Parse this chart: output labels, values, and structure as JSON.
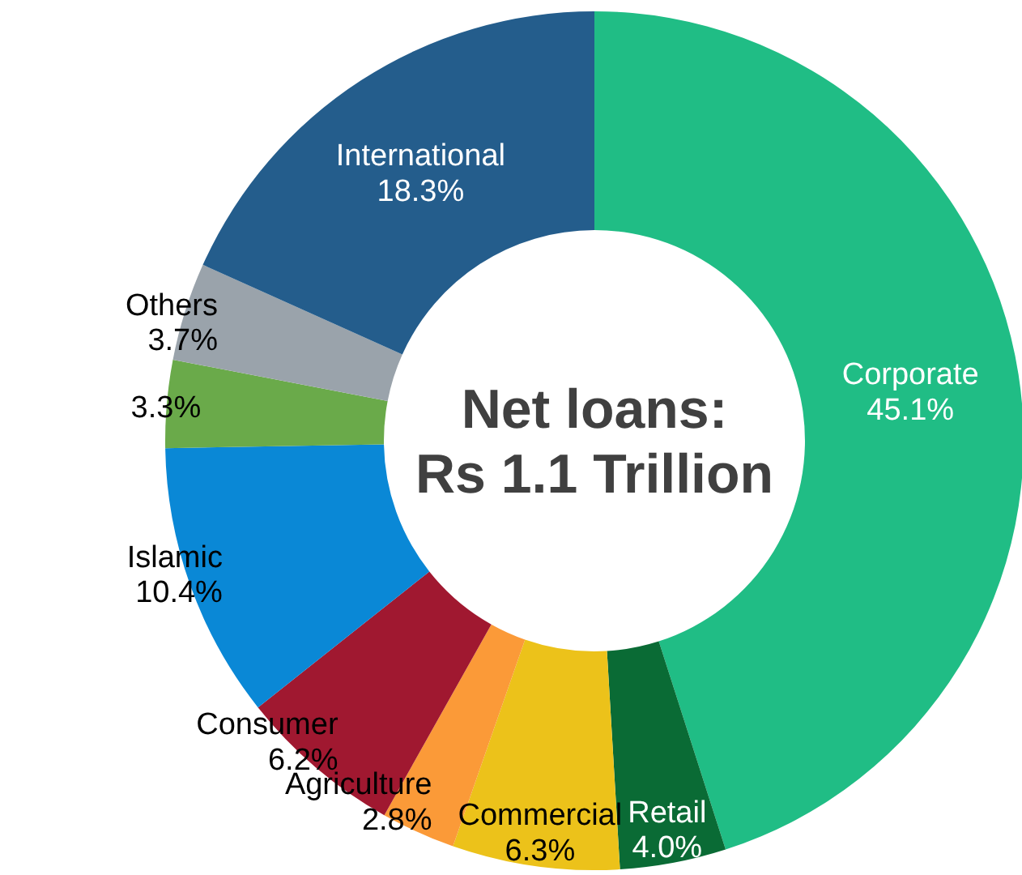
{
  "chart_data": {
    "type": "donut",
    "title": "Net loans:\nRs 1.1 Trillion",
    "categories": [
      "Corporate",
      "Retail",
      "Commercial",
      "Agriculture",
      "Consumer",
      "Islamic",
      null,
      "Others",
      "International"
    ],
    "values": [
      45.1,
      4.0,
      6.3,
      2.8,
      6.2,
      10.4,
      3.3,
      3.7,
      18.3
    ],
    "value_labels": [
      "45.1%",
      "4.0%",
      "6.3%",
      "2.8%",
      "6.2%",
      "10.4%",
      "3.3%",
      "3.7%",
      "18.3%"
    ],
    "colors": [
      "#20bd85",
      "#0a6b35",
      "#ecc21a",
      "#fb9a38",
      "#a01830",
      "#0a88d6",
      "#6aaa4a",
      "#9aa3ab",
      "#245d8c"
    ]
  }
}
